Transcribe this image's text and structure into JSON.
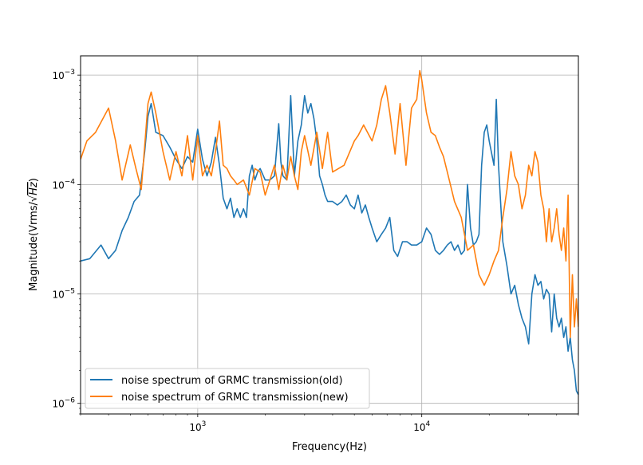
{
  "chart_data": {
    "type": "line",
    "title": "",
    "xlabel": "Frequency(Hz)",
    "ylabel_prefix": "Magnitude(Vrms/",
    "ylabel_radicand": "Hz",
    "ylabel_suffix": ")",
    "xscale": "log",
    "yscale": "log",
    "xlim": [
      300,
      50000
    ],
    "ylim": [
      8e-07,
      0.0015
    ],
    "grid": true,
    "legend_position": "lower-left",
    "x_ticks": [
      {
        "value": 1000,
        "base": "10",
        "exp": "3"
      },
      {
        "value": 10000,
        "base": "10",
        "exp": "4"
      }
    ],
    "y_ticks": [
      {
        "value": 1e-06,
        "base": "10",
        "exp": "−6"
      },
      {
        "value": 1e-05,
        "base": "10",
        "exp": "−5"
      },
      {
        "value": 0.0001,
        "base": "10",
        "exp": "−4"
      },
      {
        "value": 0.001,
        "base": "10",
        "exp": "−3"
      }
    ],
    "series": [
      {
        "name": "noise spectrum of GRMC transmission(old)",
        "color": "#1f77b4",
        "x": [
          300,
          330,
          370,
          400,
          430,
          460,
          490,
          520,
          550,
          580,
          600,
          620,
          650,
          700,
          750,
          800,
          850,
          900,
          950,
          1000,
          1050,
          1100,
          1150,
          1200,
          1250,
          1300,
          1350,
          1400,
          1450,
          1500,
          1550,
          1600,
          1650,
          1700,
          1750,
          1800,
          1850,
          1900,
          2000,
          2100,
          2200,
          2300,
          2350,
          2400,
          2500,
          2600,
          2700,
          2800,
          2900,
          3000,
          3100,
          3200,
          3300,
          3400,
          3500,
          3600,
          3700,
          3800,
          4000,
          4200,
          4400,
          4600,
          4800,
          5000,
          5200,
          5400,
          5600,
          5800,
          6000,
          6300,
          6600,
          6900,
          7200,
          7500,
          7800,
          8200,
          8600,
          9000,
          9500,
          10000,
          10500,
          11000,
          11500,
          12000,
          12500,
          13000,
          13500,
          14000,
          14500,
          15000,
          15500,
          16000,
          16500,
          17000,
          17500,
          18000,
          18500,
          19000,
          19500,
          20000,
          21000,
          21500,
          22000,
          23000,
          24000,
          25000,
          26000,
          27000,
          28000,
          29000,
          30000,
          31000,
          32000,
          33000,
          34000,
          35000,
          36000,
          37000,
          38000,
          39000,
          40000,
          41000,
          42000,
          43000,
          44000,
          45000,
          46000,
          47000,
          48000,
          49000,
          50000
        ],
        "y": [
          2e-05,
          2.1e-05,
          2.8e-05,
          2.1e-05,
          2.5e-05,
          3.8e-05,
          5e-05,
          7e-05,
          8e-05,
          0.0002,
          0.00042,
          0.00055,
          0.0003,
          0.00028,
          0.00022,
          0.00017,
          0.00014,
          0.00018,
          0.00016,
          0.00032,
          0.00017,
          0.00012,
          0.00016,
          0.00027,
          0.00015,
          7.5e-05,
          6e-05,
          7.5e-05,
          5e-05,
          6e-05,
          5e-05,
          6e-05,
          5e-05,
          0.00012,
          0.00015,
          0.00011,
          0.00013,
          0.00014,
          0.00011,
          0.00011,
          0.00012,
          0.00036,
          0.00016,
          0.00012,
          0.00011,
          0.00065,
          0.00012,
          0.00025,
          0.00035,
          0.00065,
          0.00045,
          0.00055,
          0.0004,
          0.00025,
          0.00012,
          0.0001,
          8e-05,
          7e-05,
          7e-05,
          6.5e-05,
          7e-05,
          8e-05,
          6.5e-05,
          6e-05,
          8e-05,
          5.5e-05,
          6.5e-05,
          5e-05,
          4e-05,
          3e-05,
          3.5e-05,
          4e-05,
          5e-05,
          2.5e-05,
          2.2e-05,
          3e-05,
          3e-05,
          2.8e-05,
          2.8e-05,
          3e-05,
          4e-05,
          3.5e-05,
          2.5e-05,
          2.3e-05,
          2.5e-05,
          2.8e-05,
          3e-05,
          2.5e-05,
          2.8e-05,
          2.3e-05,
          2.5e-05,
          0.0001,
          4e-05,
          2.8e-05,
          3e-05,
          3.5e-05,
          0.00015,
          0.0003,
          0.00035,
          0.00025,
          0.00015,
          0.0006,
          0.00015,
          3e-05,
          1.8e-05,
          1e-05,
          1.2e-05,
          8e-06,
          6e-06,
          5e-06,
          3.5e-06,
          1e-05,
          1.5e-05,
          1.2e-05,
          1.3e-05,
          9e-06,
          1.1e-05,
          1e-05,
          4.5e-06,
          1e-05,
          6e-06,
          5e-06,
          6e-06,
          4e-06,
          5e-06,
          3e-06,
          4e-06,
          2.5e-06,
          2e-06,
          1.3e-06,
          1.2e-06
        ]
      },
      {
        "name": "noise spectrum of GRMC transmission(new)",
        "color": "#ff7f0e",
        "x": [
          300,
          320,
          350,
          400,
          430,
          460,
          500,
          530,
          560,
          600,
          620,
          650,
          700,
          750,
          800,
          850,
          900,
          950,
          1000,
          1050,
          1100,
          1150,
          1200,
          1250,
          1300,
          1350,
          1400,
          1450,
          1500,
          1600,
          1700,
          1800,
          1900,
          2000,
          2100,
          2200,
          2300,
          2400,
          2500,
          2600,
          2700,
          2800,
          2900,
          3000,
          3200,
          3400,
          3600,
          3800,
          4000,
          4500,
          5000,
          5200,
          5500,
          6000,
          6300,
          6600,
          6900,
          7200,
          7600,
          8000,
          8500,
          9000,
          9500,
          9800,
          10000,
          10500,
          11000,
          11500,
          12000,
          12500,
          13000,
          14000,
          15000,
          16000,
          17000,
          18000,
          19000,
          20000,
          21000,
          22000,
          23000,
          24000,
          25000,
          26000,
          27000,
          28000,
          29000,
          30000,
          31000,
          32000,
          33000,
          34000,
          35000,
          36000,
          37000,
          38000,
          39000,
          40000,
          41000,
          42000,
          43000,
          44000,
          45000,
          46000,
          47000,
          48000,
          49000,
          50000
        ],
        "y": [
          0.00017,
          0.00025,
          0.0003,
          0.0005,
          0.00025,
          0.00011,
          0.00023,
          0.00014,
          9e-05,
          0.00055,
          0.0007,
          0.00045,
          0.0002,
          0.00011,
          0.0002,
          0.00012,
          0.00028,
          0.00011,
          0.00028,
          0.00012,
          0.00015,
          0.00012,
          0.0002,
          0.00038,
          0.00015,
          0.00014,
          0.00012,
          0.00011,
          0.0001,
          0.00011,
          8e-05,
          0.00014,
          0.00013,
          8e-05,
          0.00011,
          0.00015,
          9e-05,
          0.00015,
          0.00011,
          0.00018,
          0.00012,
          9e-05,
          0.0002,
          0.00028,
          0.00015,
          0.0003,
          0.00014,
          0.0003,
          0.00013,
          0.00015,
          0.00025,
          0.00028,
          0.00035,
          0.00025,
          0.00035,
          0.0006,
          0.0008,
          0.00045,
          0.00019,
          0.00055,
          0.00015,
          0.0005,
          0.0006,
          0.0011,
          0.0009,
          0.00045,
          0.0003,
          0.00028,
          0.00022,
          0.00018,
          0.00013,
          7e-05,
          5e-05,
          2.5e-05,
          2.8e-05,
          1.5e-05,
          1.2e-05,
          1.5e-05,
          2e-05,
          2.5e-05,
          5e-05,
          9e-05,
          0.0002,
          0.00012,
          0.0001,
          6e-05,
          8e-05,
          0.00015,
          0.00012,
          0.0002,
          0.00016,
          8e-05,
          6e-05,
          3e-05,
          6e-05,
          3e-05,
          4e-05,
          6e-05,
          3.5e-05,
          2.5e-05,
          4e-05,
          2e-05,
          8e-05,
          4e-06,
          1.5e-05,
          5e-06,
          9e-06,
          5e-06
        ]
      }
    ]
  }
}
